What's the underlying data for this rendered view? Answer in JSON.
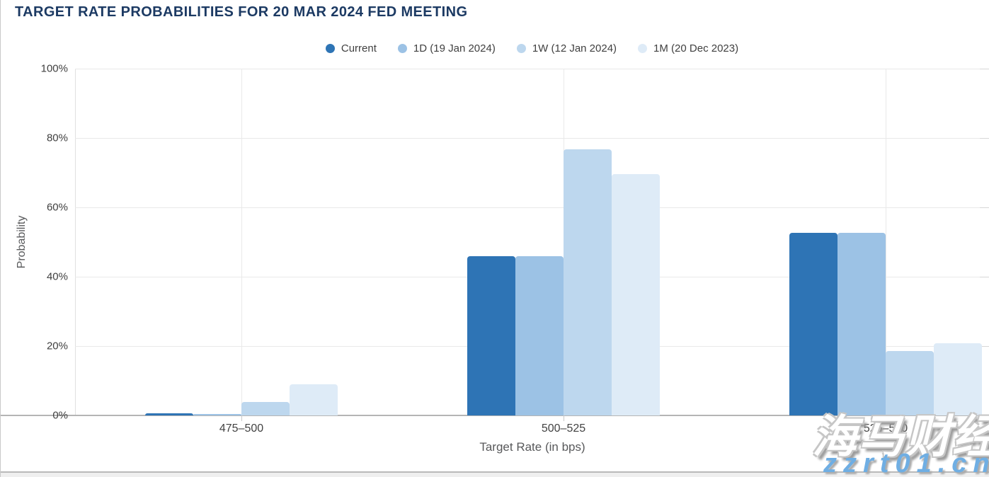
{
  "header": {
    "title": "TARGET RATE PROBABILITIES FOR 20 MAR 2024 FED MEETING"
  },
  "chart_data": {
    "type": "bar",
    "title": "TARGET RATE PROBABILITIES FOR 20 MAR 2024 FED MEETING",
    "categories": [
      "475–500",
      "500–525",
      "525–550"
    ],
    "series": [
      {
        "name": "Current",
        "color": "#2E74B5",
        "values": [
          0.6,
          46.0,
          52.7
        ]
      },
      {
        "name": "1D (19 Jan 2024)",
        "color": "#9CC2E5",
        "values": [
          0.5,
          46.0,
          52.7
        ]
      },
      {
        "name": "1W (12 Jan 2024)",
        "color": "#BDD7EE",
        "values": [
          3.9,
          76.8,
          18.6
        ]
      },
      {
        "name": "1M (20 Dec 2023)",
        "color": "#DEEBF7",
        "values": [
          9.0,
          69.5,
          20.9
        ]
      }
    ],
    "xlabel": "Target Rate (in bps)",
    "ylabel": "Probability",
    "ylim": [
      0,
      100
    ],
    "ytick_step": 20,
    "ytick_suffix": "%",
    "legend_position": "top",
    "grid": true
  },
  "watermark": {
    "brand": "海马财经",
    "site": "zzrt01.cn"
  }
}
